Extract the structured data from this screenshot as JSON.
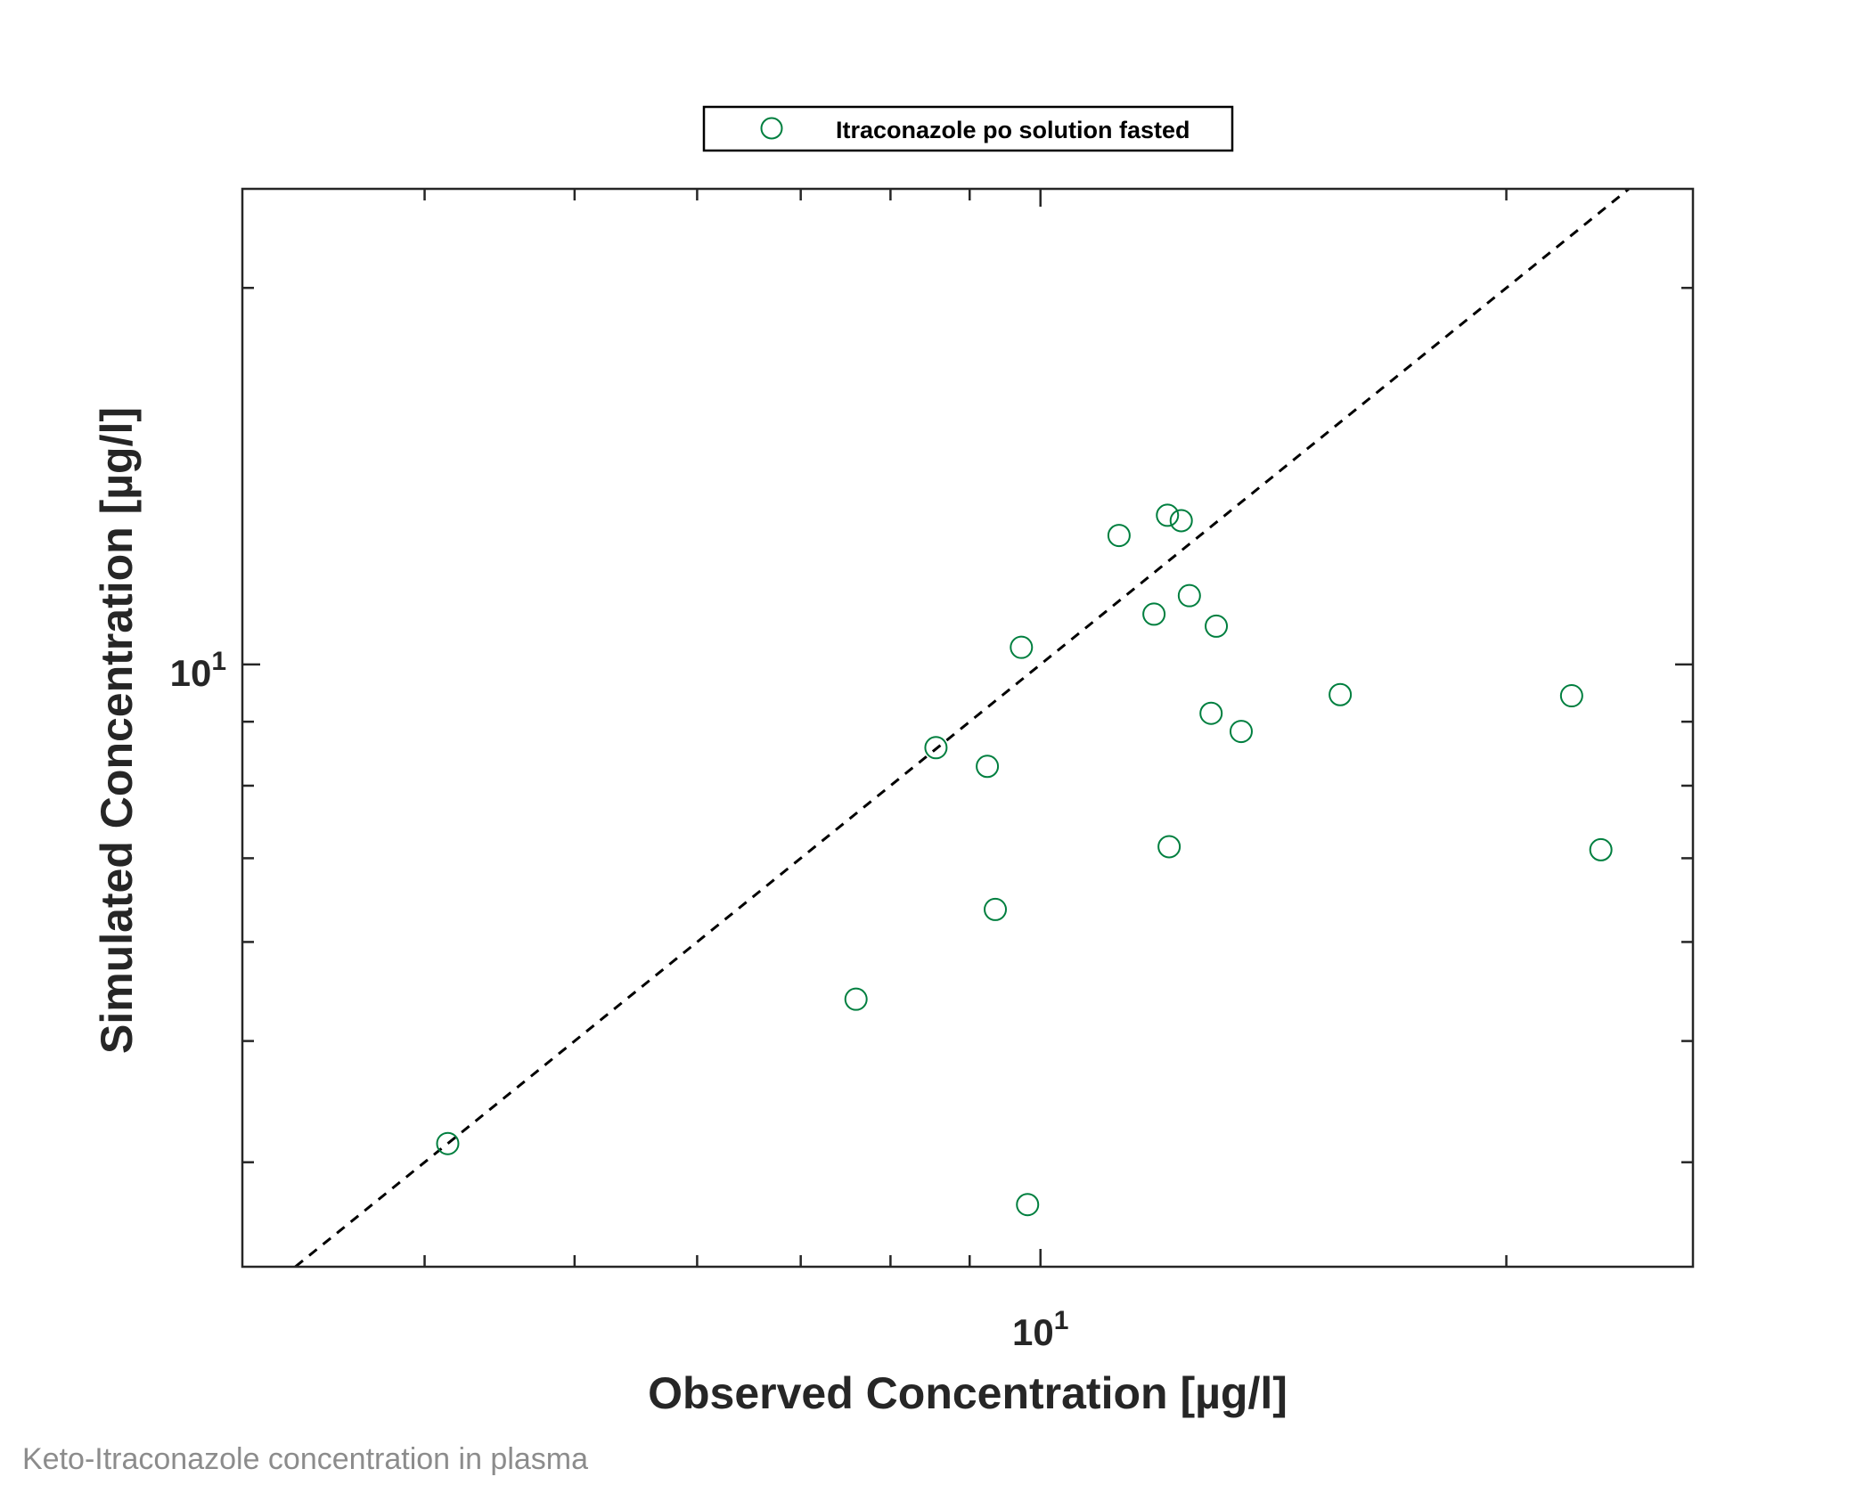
{
  "chart_data": {
    "type": "scatter",
    "xscale": "log",
    "yscale": "log",
    "xlim": [
      3.05,
      26.4
    ],
    "ylim": [
      3.3,
      24
    ],
    "xlabel": "Observed Concentration [µg/l]",
    "ylabel": "Simulated Concentration [µg/l]",
    "x_ticks": [
      {
        "value": 10,
        "label_base": "10",
        "label_exp": "1"
      }
    ],
    "y_ticks": [
      {
        "value": 10,
        "label_base": "10",
        "label_exp": "1"
      }
    ],
    "legend": {
      "placement": "top-center",
      "entries": [
        {
          "label": "Itraconazole po solution fasted"
        }
      ]
    },
    "identity_line": {
      "style": "dashed",
      "color": "#000000"
    },
    "series": [
      {
        "name": "Itraconazole po solution fasted",
        "marker": "circle-open",
        "color": "#007f3f",
        "points": [
          {
            "x": 4.14,
            "y": 4.14
          },
          {
            "x": 7.6,
            "y": 5.4
          },
          {
            "x": 8.56,
            "y": 8.58
          },
          {
            "x": 9.24,
            "y": 8.29
          },
          {
            "x": 9.35,
            "y": 6.37
          },
          {
            "x": 9.72,
            "y": 10.32
          },
          {
            "x": 9.81,
            "y": 3.7
          },
          {
            "x": 11.24,
            "y": 12.68
          },
          {
            "x": 11.84,
            "y": 10.97
          },
          {
            "x": 12.08,
            "y": 13.16
          },
          {
            "x": 12.11,
            "y": 7.15
          },
          {
            "x": 12.33,
            "y": 13.03
          },
          {
            "x": 12.48,
            "y": 11.35
          },
          {
            "x": 12.89,
            "y": 9.14
          },
          {
            "x": 12.99,
            "y": 10.73
          },
          {
            "x": 13.48,
            "y": 8.84
          },
          {
            "x": 15.62,
            "y": 9.46
          },
          {
            "x": 22.04,
            "y": 9.44
          },
          {
            "x": 23.02,
            "y": 7.11
          }
        ]
      }
    ]
  },
  "caption": "Keto-Itraconazole concentration in plasma"
}
